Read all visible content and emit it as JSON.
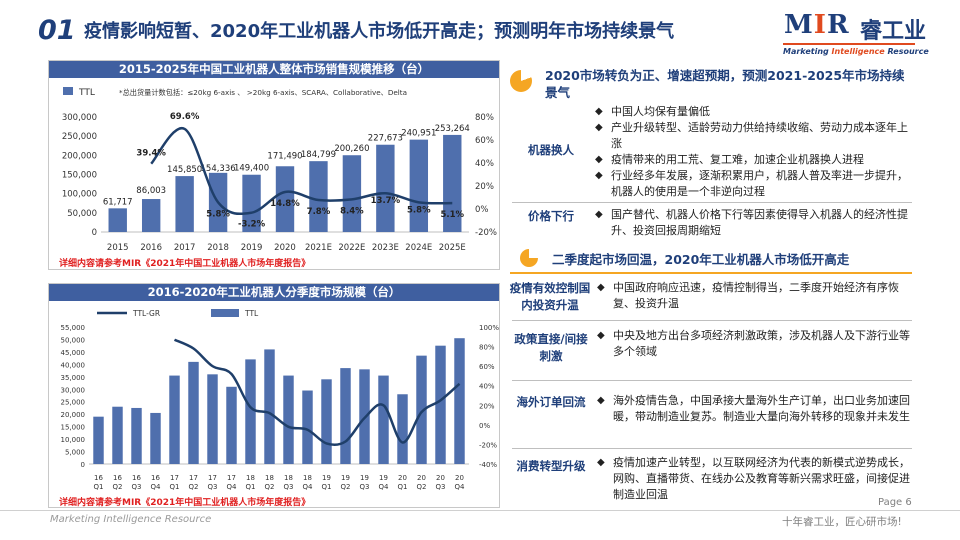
{
  "header": {
    "number": "01",
    "title": "疫情影响短暂、2020年工业机器人市场低开高走；预测明年市场持续景气",
    "logo_text": "MIR",
    "logo_cn": "睿工业",
    "logo_tagline": "Marketing Intelligence Resource"
  },
  "colors": {
    "primary": "#1f3f7a",
    "bar": "#4f6fad",
    "line": "#1f3f6a",
    "accent": "#f5a623",
    "note": "#e02020"
  },
  "panel1": {
    "title": "2015-2025年中国工业机器人整体市场销售规模推移（台）",
    "legend_ttl": "TTL",
    "footnote": "*总出货量计数包括：≤20kg  6-axis 、 >20kg  6-axis、SCARA、Collaborative、Delta",
    "note": "详细内容请参考MIR《2021年中国工业机器人市场年度报告》"
  },
  "panel2": {
    "title": "2016-2020年工业机器人分季度市场规模（台）",
    "legend_gr": "TTL-GR",
    "legend_ttl": "TTL",
    "note": "详细内容请参考MIR《2021年中国工业机器人市场年度报告》"
  },
  "chart_data": [
    {
      "type": "bar",
      "title": "2015-2025年中国工业机器人整体市场销售规模推移（台）",
      "categories": [
        "2015",
        "2016",
        "2017",
        "2018",
        "2019",
        "2020",
        "2021E",
        "2022E",
        "2023E",
        "2024E",
        "2025E"
      ],
      "series": [
        {
          "name": "TTL",
          "type": "bar",
          "axis": "left",
          "values": [
            61717,
            86003,
            145850,
            154336,
            149400,
            171490,
            184799,
            200260,
            227673,
            240951,
            253264
          ],
          "labels": [
            "61,717",
            "86,003",
            "145,850",
            "154,336",
            "149,400",
            "171,490",
            "184,799",
            "200,260",
            "227,673",
            "240,951",
            "253,264"
          ]
        },
        {
          "name": "",
          "type": "line",
          "axis": "right",
          "values": [
            null,
            39.4,
            69.6,
            5.8,
            -3.2,
            14.8,
            7.8,
            8.4,
            13.7,
            5.8,
            5.1
          ],
          "labels": [
            "",
            "39.4%",
            "69.6%",
            "5.8%",
            "-3.2%",
            "14.8%",
            "7.8%",
            "8.4%",
            "13.7%",
            "5.8%",
            "5.1%"
          ]
        }
      ],
      "ylim": [
        0,
        300000
      ],
      "yticks": [
        "0",
        "50,000",
        "100,000",
        "150,000",
        "200,000",
        "250,000",
        "300,000"
      ],
      "y2lim": [
        -20,
        80
      ],
      "y2ticks": [
        "-20%",
        "0%",
        "20%",
        "40%",
        "60%",
        "80%"
      ],
      "legend": "top-left"
    },
    {
      "type": "bar",
      "title": "2016-2020年工业机器人分季度市场规模（台）",
      "categories": [
        "16Q1",
        "16Q2",
        "16Q3",
        "16Q4",
        "17Q1",
        "17Q2",
        "17Q3",
        "17Q4",
        "18Q1",
        "18Q2",
        "18Q3",
        "18Q4",
        "19Q1",
        "19Q2",
        "19Q3",
        "19Q4",
        "20Q1",
        "20Q2",
        "20Q3",
        "20Q4"
      ],
      "tick_labels": [
        [
          "16",
          "Q1"
        ],
        [
          "16",
          "Q2"
        ],
        [
          "16",
          "Q3"
        ],
        [
          "16",
          "Q4"
        ],
        [
          "17",
          "Q1"
        ],
        [
          "17",
          "Q2"
        ],
        [
          "17",
          "Q3"
        ],
        [
          "17",
          "Q4"
        ],
        [
          "18",
          "Q1"
        ],
        [
          "18",
          "Q2"
        ],
        [
          "18",
          "Q3"
        ],
        [
          "18",
          "Q4"
        ],
        [
          "19",
          "Q1"
        ],
        [
          "19",
          "Q2"
        ],
        [
          "19",
          "Q3"
        ],
        [
          "19",
          "Q4"
        ],
        [
          "20",
          "Q1"
        ],
        [
          "20",
          "Q2"
        ],
        [
          "20",
          "Q3"
        ],
        [
          "20",
          "Q4"
        ]
      ],
      "series": [
        {
          "name": "TTL",
          "type": "bar",
          "axis": "left",
          "values": [
            19000,
            23000,
            22500,
            20500,
            35500,
            41000,
            36000,
            31000,
            42000,
            46000,
            35500,
            29500,
            34000,
            38500,
            38000,
            35500,
            28000,
            43500,
            47500,
            50500
          ]
        },
        {
          "name": "TTL-GR",
          "type": "line",
          "axis": "right",
          "values": [
            null,
            null,
            null,
            null,
            87,
            78,
            60,
            52,
            18,
            12,
            -2,
            -5,
            -19,
            -17,
            7,
            20,
            -18,
            13,
            25,
            42
          ]
        }
      ],
      "ylim": [
        0,
        55000
      ],
      "yticks": [
        "0",
        "5,000",
        "10,000",
        "15,000",
        "20,000",
        "25,000",
        "30,000",
        "35,000",
        "40,000",
        "45,000",
        "50,000",
        "55,000"
      ],
      "y2lim": [
        -40,
        100
      ],
      "y2ticks": [
        "-40%",
        "-20%",
        "0%",
        "20%",
        "40%",
        "60%",
        "80%",
        "100%"
      ],
      "legend": "top-left"
    }
  ],
  "right": {
    "section1": "2020市场转负为正、增速超预期，预测2021-2025年市场持续景气",
    "section2": "二季度起市场回温，2020年工业机器人市场低开高走",
    "rows": [
      {
        "category": "机器换人",
        "bullets": [
          "中国人均保有量偏低",
          "产业升级转型、适龄劳动力供给持续收缩、劳动力成本逐年上涨",
          "疫情带来的用工荒、复工难，加速企业机器换人进程",
          "行业经多年发展，逐渐积累用户，机器人普及率进一步提升，机器人的使用是一个非逆向过程"
        ]
      },
      {
        "category": "价格下行",
        "bullets": [
          "国产替代、机器人价格下行等因素使得导入机器人的经济性提升、投资回报周期缩短"
        ]
      },
      {
        "category": "疫情有效控制国内投资升温",
        "bullets": [
          "中国政府响应迅速，疫情控制得当，二季度开始经济有序恢复、投资升温"
        ]
      },
      {
        "category": "政策直接/间接刺激",
        "bullets": [
          "中央及地方出台多项经济刺激政策，涉及机器人及下游行业等多个领域"
        ]
      },
      {
        "category": "海外订单回流",
        "bullets": [
          "海外疫情告急，中国承接大量海外生产订单，出口业务加速回暖，带动制造业复苏。制造业大量向海外转移的现象并未发生"
        ]
      },
      {
        "category": "消费转型升级",
        "bullets": [
          "疫情加速产业转型，以互联网经济为代表的新模式逆势成长，网购、直播带货、在线办公及教育等新兴需求旺盛，间接促进制造业回温"
        ]
      }
    ]
  },
  "footer": {
    "left": "Marketing Intelligence Resource",
    "right": "十年睿工业，匠心研市场!",
    "page": "Page 6"
  }
}
